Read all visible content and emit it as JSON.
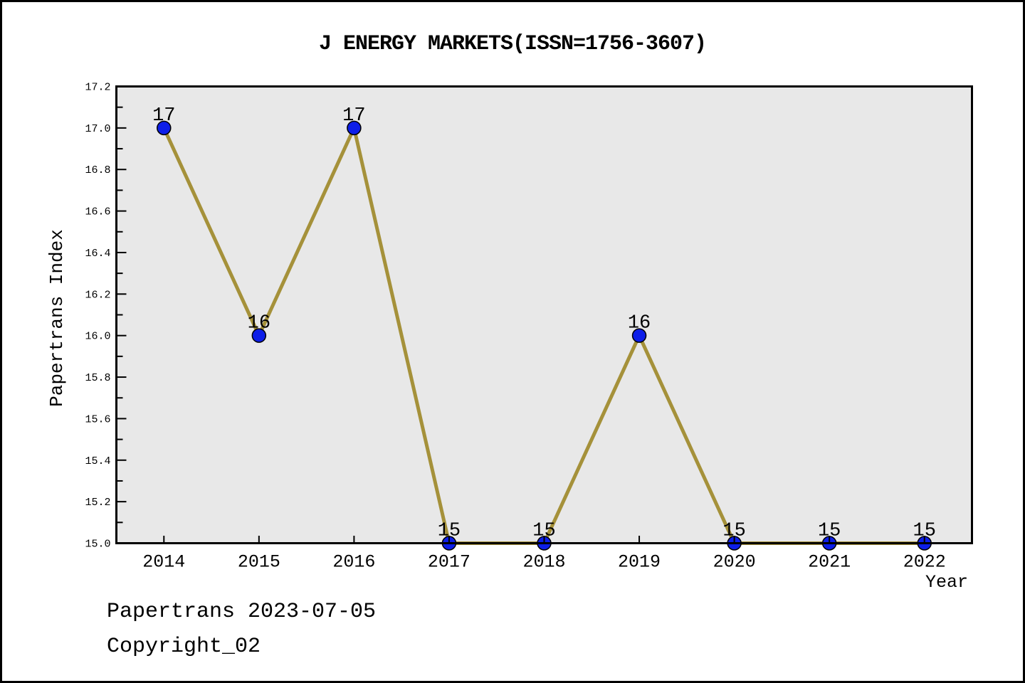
{
  "chart_title": "J ENERGY MARKETS(ISSN=1756-3607)",
  "footer": {
    "line1": "Papertrans 2023-07-05",
    "line2": "Copyright_02"
  },
  "chart_data": {
    "type": "line",
    "title": "J ENERGY MARKETS(ISSN=1756-3607)",
    "xlabel": "Year",
    "ylabel": "Papertrans Index",
    "categories": [
      2014,
      2015,
      2016,
      2017,
      2018,
      2019,
      2020,
      2021,
      2022
    ],
    "values": [
      17,
      16,
      17,
      15,
      15,
      16,
      15,
      15,
      15
    ],
    "point_labels": [
      "17",
      "16",
      "17",
      "15",
      "15",
      "16",
      "15",
      "15",
      "15"
    ],
    "ylim": [
      15.0,
      17.2
    ],
    "ytick_labels": [
      "15.0",
      "15.2",
      "15.4",
      "15.6",
      "15.8",
      "16.0",
      "16.2",
      "16.4",
      "16.6",
      "16.8",
      "17.0",
      "17.2"
    ],
    "xtick_labels": [
      "2014",
      "2015",
      "2016",
      "2017",
      "2018",
      "2019",
      "2020",
      "2021",
      "2022"
    ],
    "grid": false,
    "legend_position": "none",
    "colors": {
      "line": "#A5913A",
      "marker_fill": "#0D1EE8",
      "marker_edge": "#000000",
      "plot_background": "#E8E8E8",
      "figure_background": "#FFFFFF",
      "text": "#000000"
    }
  }
}
